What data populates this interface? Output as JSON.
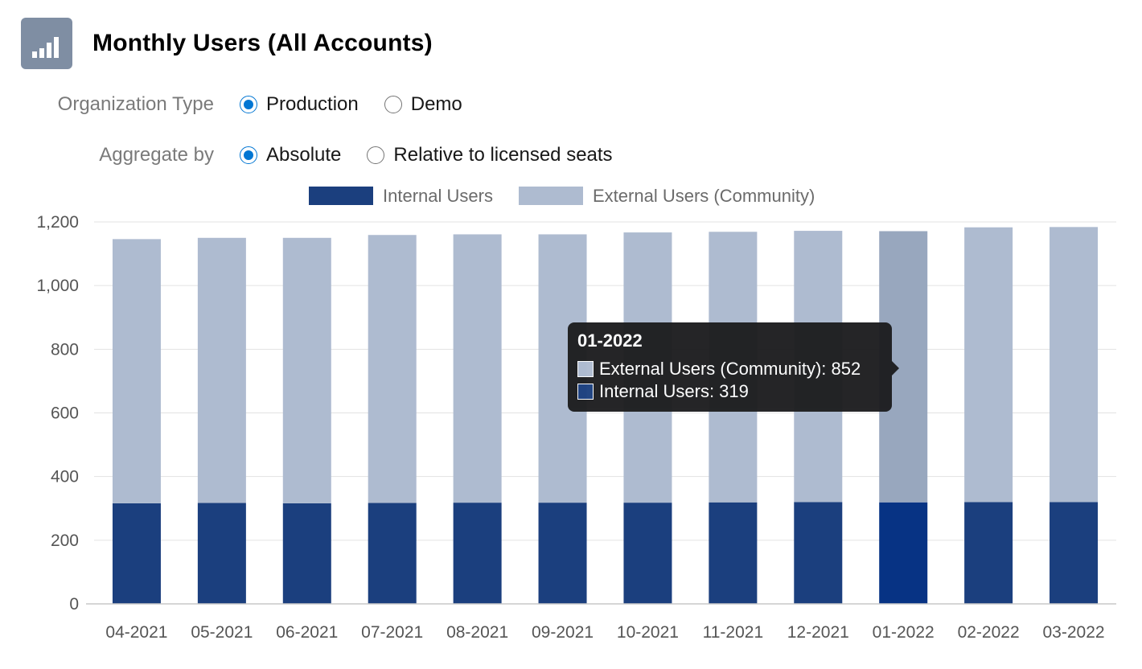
{
  "header": {
    "title": "Monthly Users (All Accounts)",
    "icon": "bar-chart-icon",
    "icon_color": "#7f8ea3"
  },
  "filters": {
    "organization_type": {
      "label": "Organization Type",
      "options": [
        {
          "label": "Production",
          "checked": true
        },
        {
          "label": "Demo",
          "checked": false
        }
      ]
    },
    "aggregate_by": {
      "label": "Aggregate by",
      "options": [
        {
          "label": "Absolute",
          "checked": true
        },
        {
          "label": "Relative to licensed seats",
          "checked": false
        }
      ]
    }
  },
  "tooltip": {
    "title": "01-2022",
    "rows": [
      {
        "label": "External Users (Community): 852",
        "color": "#aebbd0"
      },
      {
        "label": "Internal Users: 319",
        "color": "#1b3f7e"
      }
    ]
  },
  "chart_data": {
    "type": "bar",
    "stacked": true,
    "categories": [
      "04-2021",
      "05-2021",
      "06-2021",
      "07-2021",
      "08-2021",
      "09-2021",
      "10-2021",
      "11-2021",
      "12-2021",
      "01-2022",
      "02-2022",
      "03-2022"
    ],
    "series": [
      {
        "name": "Internal Users",
        "color": "#1b3f7e",
        "highlight_color": "#073384",
        "values": [
          316,
          317,
          316,
          317,
          318,
          318,
          318,
          319,
          320,
          319,
          320,
          320
        ]
      },
      {
        "name": "External Users (Community)",
        "color": "#aebbd0",
        "highlight_color": "#98a7be",
        "values": [
          830,
          833,
          834,
          842,
          843,
          843,
          849,
          850,
          852,
          852,
          863,
          864
        ]
      }
    ],
    "highlighted_index": 9,
    "yticks": [
      0,
      200,
      400,
      600,
      800,
      1000,
      1200
    ],
    "ytick_labels": [
      "0",
      "200",
      "400",
      "600",
      "800",
      "1,000",
      "1,200"
    ],
    "ylim": [
      0,
      1200
    ],
    "grid": true,
    "legend_position": "top"
  }
}
